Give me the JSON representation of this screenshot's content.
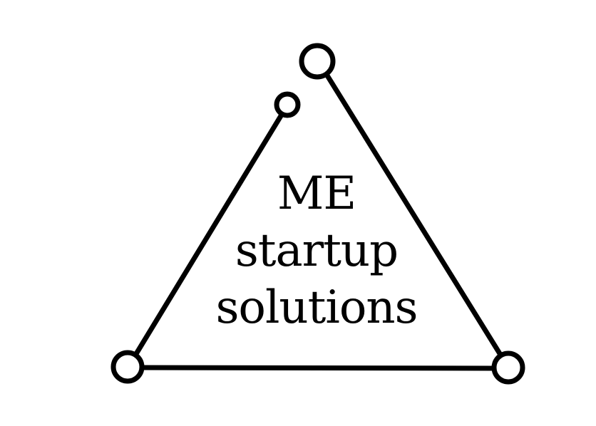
{
  "logo": {
    "lines": [
      "ME",
      "startup",
      "solutions"
    ],
    "stroke_color": "#000000",
    "fill_color": "#ffffff",
    "background_color": "#ffffff"
  }
}
